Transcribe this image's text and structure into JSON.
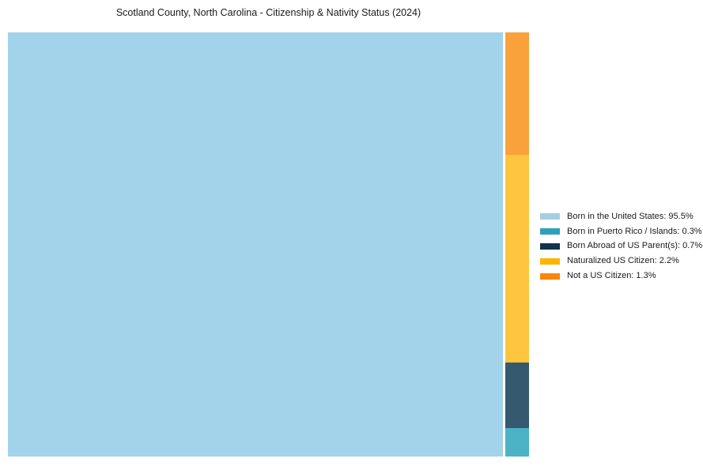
{
  "title": "Scotland County, North Carolina - Citizenship & Nativity Status (2024)",
  "chart_data": {
    "type": "treemap",
    "title": "Scotland County, North Carolina - Citizenship & Nativity Status (2024)",
    "unit": "percent",
    "total_percent": 100,
    "items": [
      {
        "label": "Born in the United States",
        "value": 95.5,
        "tile_color": "#A2D3EA",
        "legend_color": "#A6CEE3",
        "legend_label": "Born in the United States: 95.5%"
      },
      {
        "label": "Born in Puerto Rico / Islands",
        "value": 0.3,
        "tile_color": "#4CB2C6",
        "legend_color": "#2FA0BA",
        "legend_label": "Born in Puerto Rico / Islands: 0.3%"
      },
      {
        "label": "Born Abroad of US Parent(s)",
        "value": 0.7,
        "tile_color": "#35596E",
        "legend_color": "#123349",
        "legend_label": "Born Abroad of US Parent(s): 0.7%"
      },
      {
        "label": "Naturalized US Citizen",
        "value": 2.2,
        "tile_color": "#FEC53E",
        "legend_color": "#FEB505",
        "legend_label": "Naturalized US Citizen: 2.2%"
      },
      {
        "label": "Not a US Citizen",
        "value": 1.3,
        "tile_color": "#F9A23C",
        "legend_color": "#F8860B",
        "legend_label": "Not a US Citizen: 1.3%"
      }
    ],
    "layout": {
      "legend_position": "right-center",
      "grid": false,
      "main_tile": "Born in the United States",
      "side_group_total": 4.5,
      "side_column_top_to_bottom": [
        "Not a US Citizen",
        "Naturalized US Citizen",
        "Born Abroad of US Parent(s)",
        "Born in Puerto Rico / Islands"
      ]
    }
  }
}
